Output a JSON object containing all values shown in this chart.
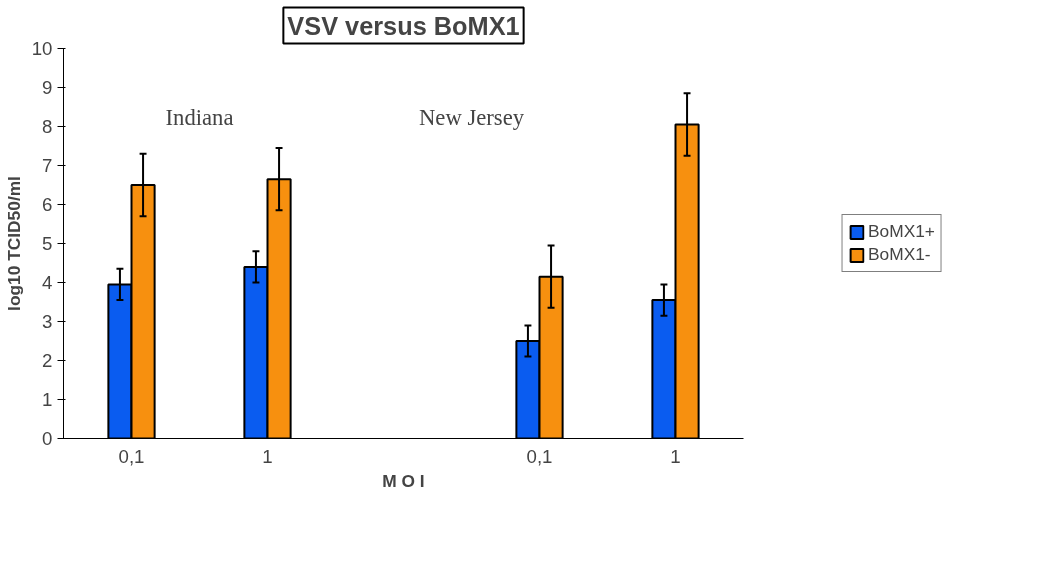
{
  "chart_data": {
    "type": "bar",
    "title": "VSV versus BoMX1",
    "xlabel": "M O I",
    "ylabel": "log10 TCID50/ml",
    "categories": [
      "0,1",
      "1",
      null,
      "0,1",
      "1"
    ],
    "series": [
      {
        "name": "BoMX1+",
        "color": "#0a5cf0",
        "values": [
          3.95,
          4.4,
          null,
          2.5,
          3.55
        ],
        "errors": [
          0.4,
          0.4,
          null,
          0.4,
          0.4
        ]
      },
      {
        "name": "BoMX1-",
        "color": "#f7900f",
        "values": [
          6.5,
          6.65,
          null,
          4.15,
          8.05
        ],
        "errors": [
          0.8,
          0.8,
          null,
          0.8,
          0.8
        ]
      }
    ],
    "annotations": [
      "Indiana",
      "New Jersey"
    ],
    "ylim": [
      0,
      10
    ],
    "yticks": [
      0,
      1,
      2,
      3,
      4,
      5,
      6,
      7,
      8,
      9,
      10
    ],
    "grid": false,
    "legend": "right"
  }
}
